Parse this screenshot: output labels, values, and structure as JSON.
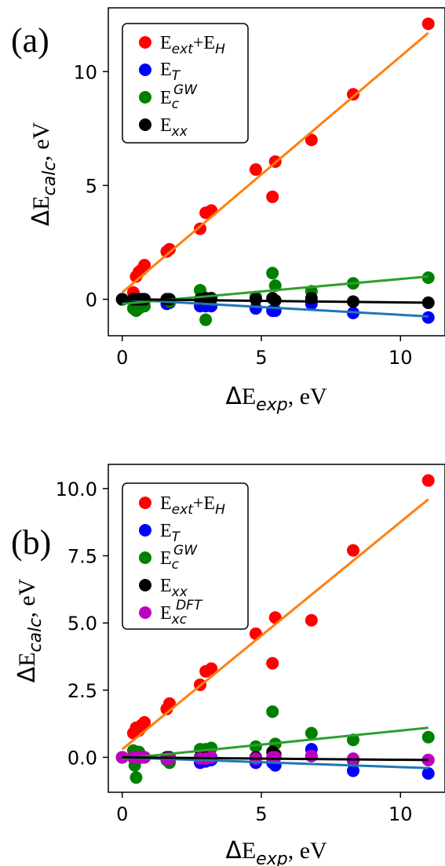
{
  "colors": {
    "E_ext_H": "#ff0000",
    "E_T": "#0000ff",
    "E_c_GW": "#008000",
    "E_xx": "#000000",
    "E_xc_DFT": "#bf00bf",
    "fit_E_ext_H": "#ff7f0e",
    "fit_E_T": "#1f77b4",
    "fit_E_c_GW": "#2ca02c",
    "fit_E_xx": "#000000"
  },
  "chart_data": [
    {
      "type": "scatter",
      "panel_label": "(a)",
      "xlabel": "ΔE_exp, eV",
      "ylabel": "ΔE_calc, eV",
      "xlim": [
        -0.5,
        11.6
      ],
      "ylim": [
        -1.6,
        12.8
      ],
      "xticks": [
        0,
        5,
        10
      ],
      "yticks": [
        0,
        5,
        10
      ],
      "x_tick_labels": [
        "0",
        "5",
        "10"
      ],
      "y_tick_labels": [
        "0",
        "5",
        "10"
      ],
      "legend_position": "upper left",
      "series": [
        {
          "name": "E_ext+E_H",
          "color_key": "E_ext_H",
          "x": [
            0,
            0.4,
            0.5,
            0.6,
            0.7,
            0.8,
            1.6,
            1.7,
            2.8,
            3.0,
            3.2,
            4.8,
            5.4,
            5.5,
            6.8,
            8.3,
            11.0
          ],
          "y": [
            0,
            0.3,
            1.0,
            1.2,
            1.3,
            1.5,
            2.1,
            2.2,
            3.1,
            3.8,
            3.9,
            5.7,
            4.5,
            6.05,
            7.0,
            9.0,
            12.1
          ]
        },
        {
          "name": "E_T",
          "color_key": "E_T",
          "x": [
            0,
            0.4,
            0.5,
            0.6,
            0.7,
            0.8,
            1.6,
            1.7,
            2.8,
            3.0,
            3.2,
            4.8,
            5.4,
            5.5,
            6.8,
            8.3,
            11.0
          ],
          "y": [
            0,
            0,
            -0.1,
            -0.05,
            0,
            0,
            -0.2,
            -0.15,
            -0.3,
            -0.3,
            -0.3,
            -0.4,
            -0.5,
            -0.5,
            -0.2,
            -0.6,
            -0.8
          ]
        },
        {
          "name": "E_c^GW",
          "color_key": "E_c_GW",
          "x": [
            0,
            0.4,
            0.5,
            0.6,
            0.7,
            0.8,
            1.6,
            1.7,
            2.8,
            3.0,
            3.2,
            4.8,
            5.4,
            5.5,
            6.8,
            8.3,
            11.0
          ],
          "y": [
            0,
            -0.4,
            -0.5,
            -0.4,
            -0.3,
            -0.3,
            0,
            -0.1,
            0.4,
            -0.9,
            0,
            0.1,
            1.15,
            0.6,
            0.35,
            0.7,
            0.95
          ]
        },
        {
          "name": "E_xx",
          "color_key": "E_xx",
          "x": [
            0,
            0.4,
            0.5,
            0.6,
            0.7,
            0.8,
            1.6,
            1.7,
            2.8,
            3.0,
            3.2,
            4.8,
            5.4,
            5.5,
            6.8,
            8.3,
            11.0
          ],
          "y": [
            0,
            0,
            0,
            0,
            0,
            0,
            0,
            0,
            0,
            0.05,
            0.05,
            0,
            0.05,
            -0.05,
            0.05,
            -0.1,
            -0.15
          ]
        }
      ],
      "fits": [
        {
          "color_key": "fit_E_ext_H",
          "x": [
            0,
            11.0
          ],
          "y": [
            0.3,
            11.7
          ]
        },
        {
          "color_key": "fit_E_T",
          "x": [
            0,
            11.0
          ],
          "y": [
            0,
            -0.75
          ]
        },
        {
          "color_key": "fit_E_c_GW",
          "x": [
            0,
            11.0
          ],
          "y": [
            -0.2,
            1.0
          ]
        },
        {
          "color_key": "fit_E_xx",
          "x": [
            0,
            11.0
          ],
          "y": [
            0,
            -0.15
          ]
        }
      ]
    },
    {
      "type": "scatter",
      "panel_label": "(b)",
      "xlabel": "ΔE_exp, eV",
      "ylabel": "ΔE_calc, eV",
      "xlim": [
        -0.5,
        11.6
      ],
      "ylim": [
        -1.3,
        10.9
      ],
      "xticks": [
        0,
        5,
        10
      ],
      "yticks": [
        0,
        2.5,
        5,
        7.5,
        10
      ],
      "x_tick_labels": [
        "0",
        "5",
        "10"
      ],
      "y_tick_labels": [
        "0.0",
        "2.5",
        "5.0",
        "7.5",
        "10.0"
      ],
      "legend_position": "upper left",
      "series": [
        {
          "name": "E_ext+E_H",
          "color_key": "E_ext_H",
          "x": [
            0,
            0.4,
            0.5,
            0.6,
            0.7,
            0.8,
            1.6,
            1.7,
            2.8,
            3.0,
            3.2,
            4.8,
            5.4,
            5.5,
            6.8,
            8.3,
            11.0
          ],
          "y": [
            0,
            0.9,
            1.1,
            1.0,
            1.2,
            1.3,
            1.8,
            2.0,
            2.7,
            3.2,
            3.3,
            4.6,
            3.5,
            5.2,
            5.1,
            7.7,
            10.3
          ]
        },
        {
          "name": "E_T",
          "color_key": "E_T",
          "x": [
            0,
            0.4,
            0.5,
            0.6,
            0.7,
            0.8,
            1.6,
            1.7,
            2.8,
            3.0,
            3.2,
            4.8,
            5.4,
            5.5,
            6.8,
            8.3,
            11.0
          ],
          "y": [
            0,
            0,
            -0.05,
            0,
            0,
            0,
            -0.1,
            -0.1,
            -0.2,
            -0.15,
            -0.1,
            -0.2,
            -0.2,
            -0.3,
            0.3,
            -0.5,
            -0.6
          ]
        },
        {
          "name": "E_c^GW",
          "color_key": "E_c_GW",
          "x": [
            0,
            0.4,
            0.45,
            0.5,
            0.6,
            0.7,
            0.8,
            1.6,
            1.7,
            2.8,
            3.0,
            3.2,
            4.8,
            5.4,
            5.5,
            6.8,
            8.3,
            11.0
          ],
          "y": [
            0,
            0.25,
            -0.3,
            -0.75,
            0.2,
            0,
            0,
            -0.1,
            -0.2,
            0.3,
            0.3,
            0.35,
            0.4,
            1.7,
            0.5,
            0.9,
            0.65,
            0.75
          ]
        },
        {
          "name": "E_xx",
          "color_key": "E_xx",
          "x": [
            0,
            0.4,
            0.5,
            0.6,
            0.7,
            0.8,
            1.6,
            1.7,
            2.8,
            3.0,
            3.2,
            4.8,
            5.4,
            5.5,
            6.8,
            8.3,
            11.0
          ],
          "y": [
            0,
            0,
            0,
            0,
            0,
            0,
            0,
            0,
            0,
            0,
            0,
            0,
            0.2,
            0.1,
            0.05,
            -0.1,
            -0.1
          ]
        },
        {
          "name": "E_xc^DFT",
          "color_key": "E_xc_DFT",
          "x": [
            0,
            0.4,
            0.5,
            0.6,
            0.7,
            0.8,
            1.6,
            1.7,
            2.8,
            3.0,
            3.2,
            4.8,
            5.4,
            5.5,
            6.8,
            8.3,
            11.0
          ],
          "y": [
            0,
            0,
            0,
            0,
            0,
            0,
            -0.05,
            -0.05,
            -0.05,
            -0.05,
            0,
            -0.05,
            0,
            0,
            0.05,
            -0.05,
            -0.1
          ]
        }
      ],
      "fits": [
        {
          "color_key": "fit_E_ext_H",
          "x": [
            0,
            11.0
          ],
          "y": [
            0.3,
            9.6
          ]
        },
        {
          "color_key": "fit_E_T",
          "x": [
            0,
            11.0
          ],
          "y": [
            0,
            -0.4
          ]
        },
        {
          "color_key": "fit_E_c_GW",
          "x": [
            0,
            11.0
          ],
          "y": [
            -0.05,
            1.1
          ]
        },
        {
          "color_key": "fit_E_xx",
          "x": [
            0,
            11.0
          ],
          "y": [
            0,
            -0.1
          ]
        }
      ]
    }
  ]
}
